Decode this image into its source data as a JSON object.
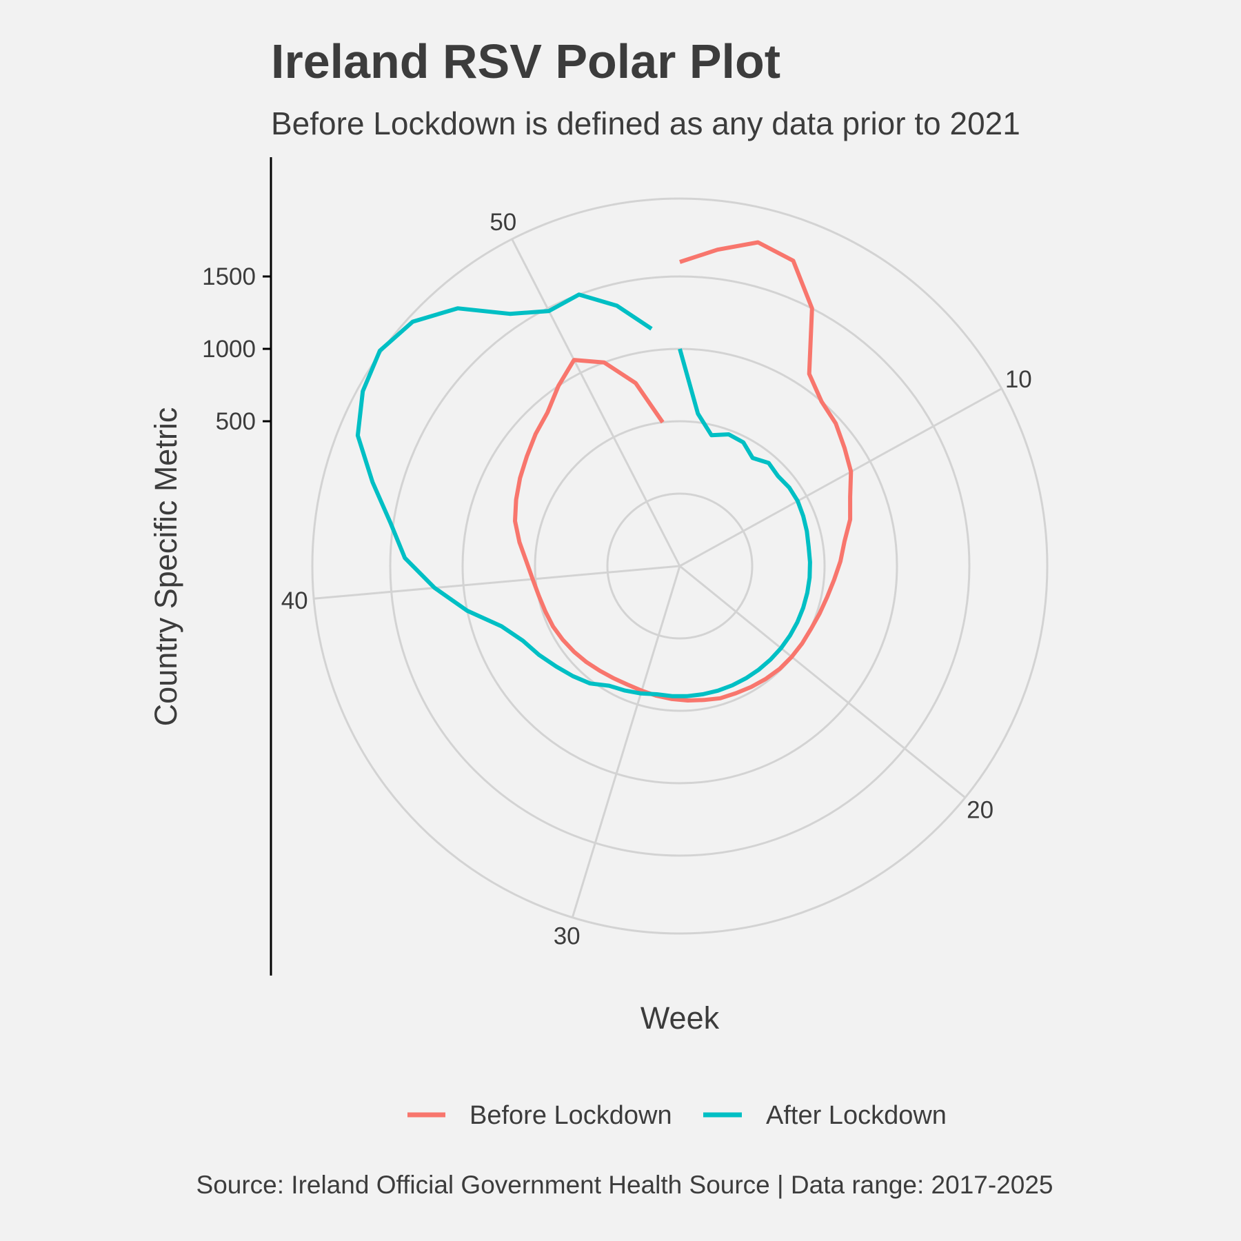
{
  "chart_data": {
    "type": "line",
    "coordinate_system": "polar",
    "title": "Ireland RSV Polar Plot",
    "subtitle": "Before Lockdown is defined as any data prior to 2021",
    "xlabel": "Week",
    "ylabel": "Country Specific Metric",
    "caption": "Source: Ireland Official Government Health Source | Data range: 2017-2025",
    "theta_ticks": [
      10,
      20,
      30,
      40,
      50
    ],
    "r_ticks": [
      500,
      1000,
      1500
    ],
    "x_range": [
      1,
      53
    ],
    "r_range": [
      -500,
      2200
    ],
    "grid": true,
    "legend_position": "bottom",
    "series": [
      {
        "name": "Before Lockdown",
        "color": "#F8766D",
        "x": [
          1,
          2,
          3,
          4,
          5,
          6,
          7,
          8,
          9,
          10,
          11,
          12,
          13,
          14,
          15,
          16,
          17,
          18,
          19,
          20,
          21,
          22,
          23,
          24,
          25,
          26,
          27,
          28,
          29,
          30,
          31,
          32,
          33,
          34,
          35,
          36,
          37,
          38,
          39,
          40,
          41,
          42,
          43,
          44,
          45,
          46,
          47,
          48,
          49,
          50,
          51,
          52,
          53
        ],
        "values": [
          1600,
          1700,
          1800,
          1750,
          1500,
          1100,
          1000,
          960,
          900,
          850,
          770,
          720,
          650,
          610,
          570,
          540,
          520,
          505,
          500,
          495,
          490,
          480,
          470,
          460,
          455,
          440,
          430,
          420,
          410,
          400,
          395,
          400,
          410,
          425,
          440,
          455,
          470,
          480,
          495,
          520,
          560,
          620,
          680,
          720,
          760,
          800,
          850,
          900,
          1000,
          1100,
          1000,
          800,
          500
        ]
      },
      {
        "name": "After Lockdown",
        "color": "#00BFC4",
        "x": [
          1,
          2,
          3,
          4,
          5,
          6,
          7,
          8,
          9,
          10,
          11,
          12,
          13,
          14,
          15,
          16,
          17,
          18,
          19,
          20,
          21,
          22,
          23,
          24,
          25,
          26,
          27,
          28,
          29,
          30,
          31,
          32,
          33,
          34,
          35,
          36,
          37,
          38,
          39,
          40,
          41,
          42,
          43,
          44,
          45,
          46,
          47,
          48,
          49,
          50,
          51,
          52,
          53
        ],
        "values": [
          1000,
          560,
          430,
          470,
          460,
          400,
          440,
          420,
          430,
          430,
          420,
          410,
          400,
          400,
          400,
          400,
          400,
          400,
          400,
          400,
          400,
          400,
          400,
          400,
          400,
          400,
          400,
          400,
          400,
          420,
          440,
          460,
          520,
          560,
          600,
          650,
          700,
          800,
          1000,
          1200,
          1400,
          1520,
          1700,
          1900,
          2000,
          2050,
          2000,
          1850,
          1600,
          1480,
          1500,
          1350,
          1150
        ]
      }
    ]
  }
}
